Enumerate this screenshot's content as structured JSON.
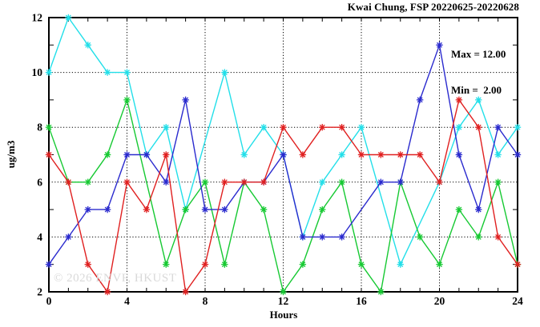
{
  "page": {
    "background": "#ffffff"
  },
  "chart_data": {
    "type": "line",
    "title": "Kwai Chung, FSP 20220625-20220628",
    "xlabel": "Hours",
    "ylabel": "ug/m3",
    "xlim": [
      0,
      24
    ],
    "ylim": [
      2,
      12
    ],
    "x_ticks": [
      0,
      4,
      8,
      12,
      16,
      20,
      24
    ],
    "y_ticks": [
      12,
      10,
      8,
      6,
      4,
      2
    ],
    "grid": {
      "x_at": [
        4,
        8,
        12,
        16,
        20
      ],
      "y_at": [
        4,
        6,
        8,
        10
      ],
      "style": "dotted"
    },
    "legend": "none",
    "gap_policy": "connect",
    "marker": "asterisk",
    "annotation": {
      "max_label": "Max = 12.00",
      "min_label": "Min =  2.00"
    },
    "watermark": "© 2026 ENVF, HKUST",
    "x": [
      0,
      1,
      2,
      3,
      4,
      5,
      6,
      7,
      8,
      9,
      10,
      11,
      12,
      13,
      14,
      15,
      16,
      17,
      18,
      19,
      20,
      21,
      22,
      23,
      24
    ],
    "series": [
      {
        "name": "cyan",
        "color": "#22dfe9",
        "values": [
          10,
          12,
          11,
          10,
          10,
          7,
          8,
          5,
          null,
          10,
          7,
          8,
          7,
          4,
          6,
          7,
          8,
          null,
          3,
          null,
          6,
          8,
          9,
          7,
          8
        ]
      },
      {
        "name": "green",
        "color": "#16c932",
        "values": [
          8,
          6,
          6,
          7,
          9,
          null,
          3,
          5,
          6,
          3,
          6,
          5,
          2,
          3,
          5,
          6,
          3,
          2,
          6,
          4,
          3,
          5,
          4,
          6,
          3
        ]
      },
      {
        "name": "blue",
        "color": "#2a2ace",
        "values": [
          3,
          4,
          5,
          5,
          7,
          7,
          6,
          9,
          5,
          5,
          6,
          6,
          7,
          4,
          4,
          4,
          null,
          6,
          6,
          9,
          11,
          7,
          5,
          8,
          7
        ]
      },
      {
        "name": "red",
        "color": "#e02020",
        "values": [
          7,
          6,
          3,
          2,
          6,
          5,
          7,
          2,
          3,
          6,
          6,
          6,
          8,
          7,
          8,
          8,
          7,
          7,
          7,
          7,
          6,
          9,
          8,
          4,
          3
        ]
      }
    ],
    "frame_color": "#000000",
    "tick_label_color": "#000000"
  }
}
